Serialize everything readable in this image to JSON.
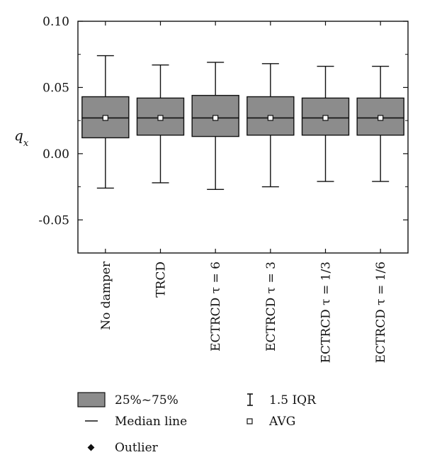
{
  "chart_data": {
    "type": "box",
    "ylabel": "q",
    "ylabel_sub": "x",
    "ylim": [
      -0.075,
      0.1
    ],
    "yticks": [
      "0.10",
      "0.05",
      "0.00",
      "-0.05"
    ],
    "ytick_values": [
      0.1,
      0.05,
      0.0,
      -0.05
    ],
    "categories": [
      "No damper",
      "TRCD",
      "ECTRCD τ = 6",
      "ECTRCD τ = 3",
      "ECTRCD τ = 1/3",
      "ECTRCD τ = 1/6"
    ],
    "boxes": [
      {
        "min": -0.026,
        "q1": 0.012,
        "median": 0.027,
        "q3": 0.043,
        "max": 0.074,
        "mean": 0.027
      },
      {
        "min": -0.022,
        "q1": 0.014,
        "median": 0.027,
        "q3": 0.042,
        "max": 0.067,
        "mean": 0.027
      },
      {
        "min": -0.027,
        "q1": 0.013,
        "median": 0.027,
        "q3": 0.044,
        "max": 0.069,
        "mean": 0.027
      },
      {
        "min": -0.025,
        "q1": 0.014,
        "median": 0.027,
        "q3": 0.043,
        "max": 0.068,
        "mean": 0.027
      },
      {
        "min": -0.021,
        "q1": 0.014,
        "median": 0.027,
        "q3": 0.042,
        "max": 0.066,
        "mean": 0.027
      },
      {
        "min": -0.021,
        "q1": 0.014,
        "median": 0.027,
        "q3": 0.042,
        "max": 0.066,
        "mean": 0.027
      }
    ],
    "box_color": "#8c8c8c",
    "grid": false
  },
  "legend": {
    "box_label": "25%~75%",
    "median_label": "Median line",
    "outlier_label": "Outlier",
    "iqr_label": "1.5 IQR",
    "avg_label": "AVG"
  }
}
